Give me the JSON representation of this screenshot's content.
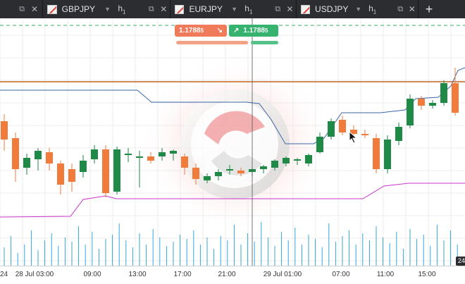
{
  "tabs": [
    {
      "symbol": "",
      "timeframe": "",
      "show_flag": false
    },
    {
      "symbol": "GBPJPY",
      "timeframe": "h",
      "timeframe_sub": "1"
    },
    {
      "symbol": "EURJPY",
      "timeframe": "h",
      "timeframe_sub": "1"
    },
    {
      "symbol": "USDJPY",
      "timeframe": "h",
      "timeframe_sub": "1"
    }
  ],
  "add_tab_label": "+",
  "trade": {
    "sell_price": "1.1788",
    "sell_price_sub": "5",
    "buy_price": "1.1788",
    "buy_price_sub": "5"
  },
  "time_axis": {
    "labels": [
      "28 Jul 03:00",
      "09:00",
      "13:00",
      "17:00",
      "21:00",
      "29 Jul 01:00",
      "07:00",
      "11:00",
      "15:00"
    ],
    "first_partial": "24",
    "right_partial": "24"
  },
  "chart_data": {
    "type": "candlestick",
    "series": [
      {
        "name": "",
        "kind": "ohlc",
        "bullish_color": "#1e8a45",
        "bearish_color": "#f07b3a"
      },
      {
        "name": "",
        "kind": "line",
        "color": "#3a66a8"
      },
      {
        "name": "",
        "kind": "line",
        "color": "#cc33cc"
      },
      {
        "name": "",
        "kind": "volume",
        "color": "#34a7de"
      }
    ],
    "horizontal_line_color": "#c0681e",
    "grid": true,
    "colors": {
      "tab_bar": "#2b2d31",
      "sell": "#f07b5a",
      "buy": "#35b36f"
    }
  }
}
